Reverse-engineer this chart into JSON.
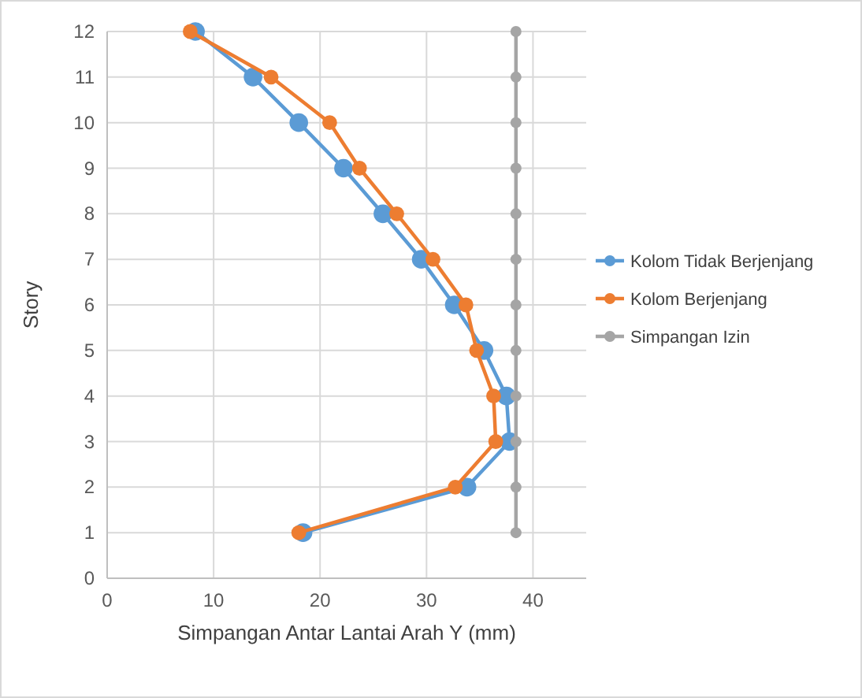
{
  "chart_data": {
    "type": "line",
    "orientation": "horizontal",
    "xlabel": "Simpangan Antar Lantai Arah Y (mm)",
    "ylabel": "Story",
    "x": [
      1,
      2,
      3,
      4,
      5,
      6,
      7,
      8,
      9,
      10,
      11,
      12
    ],
    "series": [
      {
        "name": "Kolom Tidak Berjenjang",
        "color": "#5b9bd5",
        "values": [
          18.4,
          33.8,
          37.8,
          37.5,
          35.4,
          32.6,
          29.5,
          25.9,
          22.2,
          18.0,
          13.7,
          8.3
        ]
      },
      {
        "name": "Kolom Berjenjang",
        "color": "#ed7d31",
        "values": [
          18.0,
          32.7,
          36.5,
          36.3,
          34.7,
          33.7,
          30.6,
          27.2,
          23.7,
          20.9,
          15.4,
          7.8
        ]
      },
      {
        "name": "Simpangan Izin",
        "color": "#a5a5a5",
        "values": [
          38.4,
          38.4,
          38.4,
          38.4,
          38.4,
          38.4,
          38.4,
          38.4,
          38.4,
          38.4,
          38.4,
          38.4
        ]
      }
    ],
    "xlim": [
      0,
      45
    ],
    "xticks": [
      0,
      10,
      20,
      30,
      40
    ],
    "ylim": [
      0,
      12
    ],
    "yticks": [
      0,
      1,
      2,
      3,
      4,
      5,
      6,
      7,
      8,
      9,
      10,
      11,
      12
    ],
    "grid": true,
    "legend": "right",
    "marker": "circle",
    "line_style": "solid"
  }
}
